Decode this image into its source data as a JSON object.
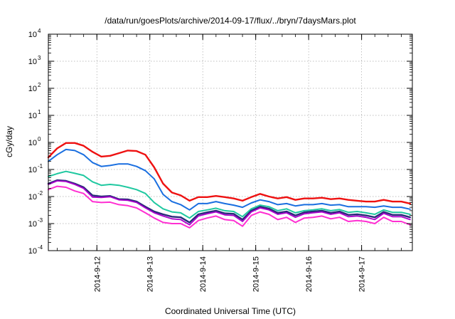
{
  "chart_data": {
    "type": "line",
    "title": "/data/run/goesPlots/archive/2014-09-17/flux/../bryn/7daysMars.plot",
    "xlabel": "Coordinated Universal Time (UTC)",
    "ylabel": "cGy/day",
    "y_scale": "log",
    "ylim": [
      0.0001,
      10000
    ],
    "y_ticks": [
      {
        "base": "10",
        "exp": "-4",
        "value": 0.0001
      },
      {
        "base": "10",
        "exp": "-3",
        "value": 0.001
      },
      {
        "base": "10",
        "exp": "-2",
        "value": 0.01
      },
      {
        "base": "10",
        "exp": "-1",
        "value": 0.1
      },
      {
        "base": "10",
        "exp": "0",
        "value": 1
      },
      {
        "base": "10",
        "exp": "1",
        "value": 10
      },
      {
        "base": "10",
        "exp": "2",
        "value": 100
      },
      {
        "base": "10",
        "exp": "3",
        "value": 1000
      },
      {
        "base": "10",
        "exp": "4",
        "value": 10000
      }
    ],
    "x_ticks": [
      "2014-9-12",
      "2014-9-13",
      "2014-9-14",
      "2014-9-15",
      "2014-9-16",
      "2014-9-17"
    ],
    "xlim": [
      "2014-09-11 02:00",
      "2014-09-17 23:00"
    ],
    "grid": true,
    "legend": "none",
    "x": [
      "2014-09-11 02:00",
      "2014-09-11 06:00",
      "2014-09-11 10:00",
      "2014-09-11 14:00",
      "2014-09-11 18:00",
      "2014-09-11 22:00",
      "2014-09-12 02:00",
      "2014-09-12 06:00",
      "2014-09-12 10:00",
      "2014-09-12 14:00",
      "2014-09-12 18:00",
      "2014-09-12 22:00",
      "2014-09-13 02:00",
      "2014-09-13 06:00",
      "2014-09-13 10:00",
      "2014-09-13 14:00",
      "2014-09-13 18:00",
      "2014-09-13 22:00",
      "2014-09-14 02:00",
      "2014-09-14 06:00",
      "2014-09-14 10:00",
      "2014-09-14 14:00",
      "2014-09-14 18:00",
      "2014-09-14 22:00",
      "2014-09-15 02:00",
      "2014-09-15 06:00",
      "2014-09-15 10:00",
      "2014-09-15 14:00",
      "2014-09-15 18:00",
      "2014-09-15 22:00",
      "2014-09-16 02:00",
      "2014-09-16 06:00",
      "2014-09-16 10:00",
      "2014-09-16 14:00",
      "2014-09-16 18:00",
      "2014-09-16 22:00",
      "2014-09-17 02:00",
      "2014-09-17 06:00",
      "2014-09-17 10:00",
      "2014-09-17 14:00",
      "2014-09-17 18:00",
      "2014-09-17 22:00"
    ],
    "series": [
      {
        "color": "#ee1111",
        "width": 2.4,
        "values": [
          0.28,
          0.6,
          0.95,
          0.95,
          0.75,
          0.45,
          0.3,
          0.32,
          0.4,
          0.5,
          0.48,
          0.35,
          0.12,
          0.03,
          0.014,
          0.011,
          0.007,
          0.0095,
          0.0095,
          0.0105,
          0.0095,
          0.0085,
          0.007,
          0.0095,
          0.0125,
          0.01,
          0.0085,
          0.0095,
          0.0075,
          0.0085,
          0.0085,
          0.009,
          0.008,
          0.0085,
          0.0075,
          0.007,
          0.0065,
          0.0065,
          0.0075,
          0.0065,
          0.0065,
          0.0055
        ]
      },
      {
        "color": "#1a6fe0",
        "width": 2.0,
        "values": [
          0.2,
          0.35,
          0.55,
          0.5,
          0.35,
          0.18,
          0.13,
          0.14,
          0.16,
          0.16,
          0.13,
          0.09,
          0.045,
          0.012,
          0.0065,
          0.005,
          0.0032,
          0.0055,
          0.0055,
          0.0065,
          0.0055,
          0.0048,
          0.004,
          0.0058,
          0.0075,
          0.0065,
          0.005,
          0.0055,
          0.0045,
          0.005,
          0.005,
          0.0055,
          0.0048,
          0.005,
          0.0042,
          0.0042,
          0.0042,
          0.004,
          0.0045,
          0.004,
          0.004,
          0.0034
        ]
      },
      {
        "color": "#1fc8a0",
        "width": 2.0,
        "values": [
          0.055,
          0.07,
          0.085,
          0.072,
          0.06,
          0.035,
          0.026,
          0.028,
          0.026,
          0.022,
          0.018,
          0.013,
          0.006,
          0.0035,
          0.0027,
          0.0025,
          0.0016,
          0.0028,
          0.0032,
          0.0037,
          0.003,
          0.0028,
          0.0018,
          0.0035,
          0.0048,
          0.0042,
          0.003,
          0.0035,
          0.0025,
          0.003,
          0.0032,
          0.0035,
          0.003,
          0.0033,
          0.0026,
          0.0028,
          0.0025,
          0.0022,
          0.0032,
          0.0026,
          0.0026,
          0.0022
        ]
      },
      {
        "color": "#2a2a7a",
        "width": 2.4,
        "values": [
          0.03,
          0.04,
          0.038,
          0.03,
          0.022,
          0.011,
          0.01,
          0.0105,
          0.008,
          0.0078,
          0.0065,
          0.0042,
          0.0028,
          0.0022,
          0.0018,
          0.0017,
          0.0011,
          0.0022,
          0.0026,
          0.003,
          0.0024,
          0.0023,
          0.0014,
          0.003,
          0.0042,
          0.0036,
          0.0025,
          0.0028,
          0.002,
          0.0026,
          0.0028,
          0.003,
          0.0025,
          0.0028,
          0.0021,
          0.0022,
          0.002,
          0.0017,
          0.0027,
          0.0021,
          0.0021,
          0.0017
        ]
      },
      {
        "color": "#aa00cc",
        "width": 1.8,
        "values": [
          0.028,
          0.038,
          0.036,
          0.028,
          0.02,
          0.0095,
          0.0092,
          0.0098,
          0.0075,
          0.0072,
          0.006,
          0.0038,
          0.0025,
          0.0019,
          0.0015,
          0.0014,
          0.0009,
          0.0019,
          0.0023,
          0.0027,
          0.0021,
          0.002,
          0.0012,
          0.0027,
          0.0038,
          0.0032,
          0.0022,
          0.0025,
          0.0017,
          0.0023,
          0.0025,
          0.0027,
          0.0022,
          0.0025,
          0.0018,
          0.0019,
          0.0017,
          0.0014,
          0.0024,
          0.0018,
          0.0018,
          0.0014
        ]
      },
      {
        "color": "#ff2fd2",
        "width": 2.0,
        "values": [
          0.018,
          0.024,
          0.022,
          0.016,
          0.013,
          0.0065,
          0.006,
          0.0062,
          0.005,
          0.0046,
          0.0038,
          0.0025,
          0.0016,
          0.0011,
          0.001,
          0.001,
          0.0007,
          0.0013,
          0.0016,
          0.0019,
          0.0014,
          0.0013,
          0.0008,
          0.002,
          0.0027,
          0.0022,
          0.0014,
          0.0017,
          0.0011,
          0.0016,
          0.0017,
          0.0019,
          0.0015,
          0.0017,
          0.0012,
          0.0013,
          0.0012,
          0.001,
          0.0017,
          0.0012,
          0.0012,
          0.0009
        ]
      }
    ]
  }
}
